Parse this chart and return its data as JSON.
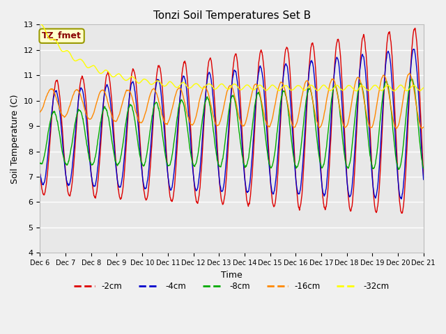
{
  "title": "Tonzi Soil Temperatures Set B",
  "xlabel": "Time",
  "ylabel": "Soil Temperature (C)",
  "ylim": [
    4.0,
    13.0
  ],
  "yticks": [
    4.0,
    5.0,
    6.0,
    7.0,
    8.0,
    9.0,
    10.0,
    11.0,
    12.0,
    13.0
  ],
  "colors": {
    "-2cm": "#dd0000",
    "-4cm": "#0000cc",
    "-8cm": "#00aa00",
    "-16cm": "#ff8800",
    "-32cm": "#ffff00"
  },
  "background_color": "#f0f0f0",
  "plot_bg_color": "#e8e8e8",
  "annotation_text": "TZ_fmet",
  "annotation_box_color": "#ffffcc",
  "annotation_border_color": "#999900",
  "annotation_text_color": "#880000",
  "xtick_days": [
    6,
    7,
    8,
    9,
    10,
    11,
    12,
    13,
    14,
    15,
    16,
    17,
    18,
    19,
    20,
    21
  ]
}
